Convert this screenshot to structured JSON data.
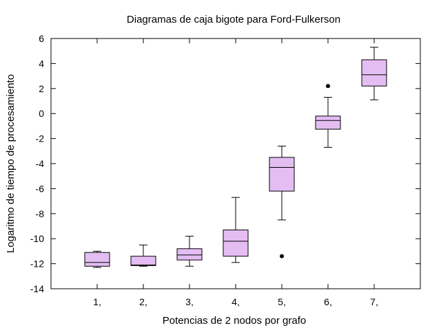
{
  "chart_data": {
    "type": "box",
    "title": "Diagramas de caja bigote para Ford-Fulkerson",
    "xlabel": "Potencias de 2 nodos por grafo",
    "ylabel": "Logaritmo de tiempo de procesamiento",
    "categories": [
      "1,",
      "2,",
      "3,",
      "4,",
      "5,",
      "6,",
      "7,"
    ],
    "ylim": [
      -14,
      6
    ],
    "yticks": [
      -14,
      -12,
      -10,
      -8,
      -6,
      -4,
      -2,
      0,
      2,
      4,
      6
    ],
    "xlim": [
      0,
      8
    ],
    "grid": false,
    "legend": "none",
    "box_color": "#e4bdf3",
    "boxes": [
      {
        "category": "1,",
        "min": -12.3,
        "q1": -12.2,
        "median": -11.9,
        "q3": -11.1,
        "max": -11.0,
        "outliers": []
      },
      {
        "category": "2,",
        "min": -12.2,
        "q1": -12.15,
        "median": -12.1,
        "q3": -11.4,
        "max": -10.5,
        "outliers": []
      },
      {
        "category": "3,",
        "min": -12.2,
        "q1": -11.7,
        "median": -11.3,
        "q3": -10.8,
        "max": -9.8,
        "outliers": []
      },
      {
        "category": "4,",
        "min": -11.9,
        "q1": -11.4,
        "median": -10.2,
        "q3": -9.3,
        "max": -6.7,
        "outliers": []
      },
      {
        "category": "5,",
        "min": -8.5,
        "q1": -6.2,
        "median": -4.3,
        "q3": -3.5,
        "max": -2.6,
        "outliers": [
          -11.4
        ]
      },
      {
        "category": "6,",
        "min": -2.7,
        "q1": -1.25,
        "median": -0.55,
        "q3": -0.2,
        "max": 1.3,
        "outliers": [
          2.2
        ]
      },
      {
        "category": "7,",
        "min": 1.1,
        "q1": 2.2,
        "median": 3.1,
        "q3": 4.3,
        "max": 5.3,
        "outliers": []
      }
    ]
  }
}
